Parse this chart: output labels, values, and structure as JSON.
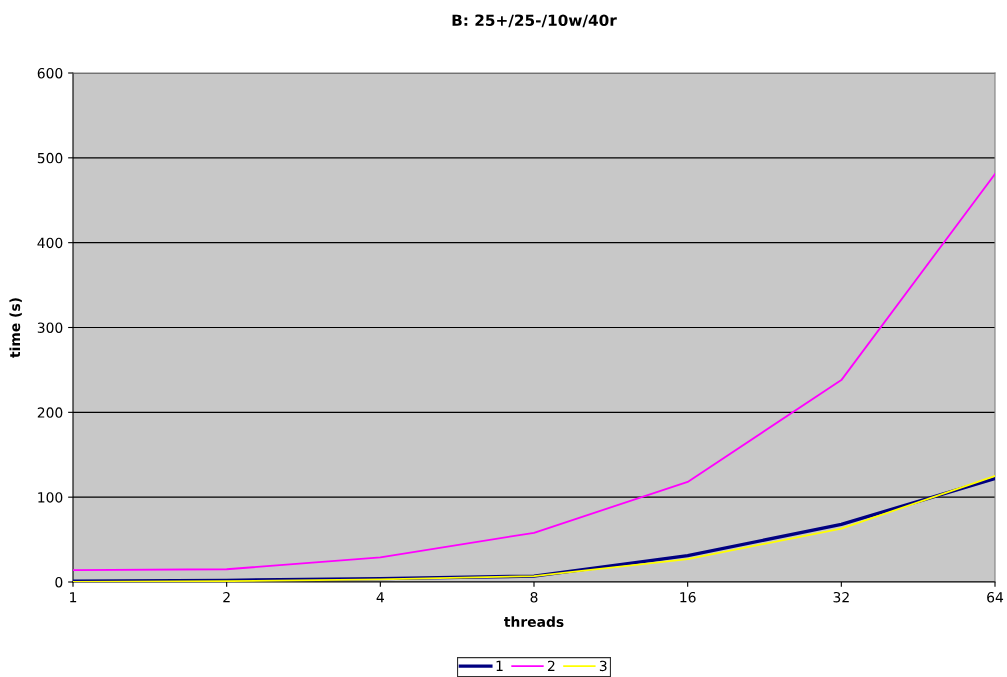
{
  "chart_data": {
    "type": "line",
    "title": "B: 25+/25-/10w/40r",
    "xlabel": "threads",
    "ylabel": "time (s)",
    "categories": [
      "1",
      "2",
      "4",
      "8",
      "16",
      "32",
      "64"
    ],
    "series": [
      {
        "name": "1",
        "color": "#000080",
        "values": [
          1,
          2,
          4,
          7,
          31,
          68,
          122
        ]
      },
      {
        "name": "2",
        "color": "#ff00ff",
        "values": [
          14,
          15,
          29,
          58,
          118,
          238,
          481
        ]
      },
      {
        "name": "3",
        "color": "#ffff00",
        "values": [
          0,
          1,
          3,
          7,
          27,
          63,
          125
        ]
      }
    ],
    "ylim": [
      0,
      600
    ],
    "yticks": [
      0,
      100,
      200,
      300,
      400,
      500,
      600
    ],
    "grid": "y",
    "legend": "bottom",
    "marker": "none",
    "line_style": "solid"
  }
}
